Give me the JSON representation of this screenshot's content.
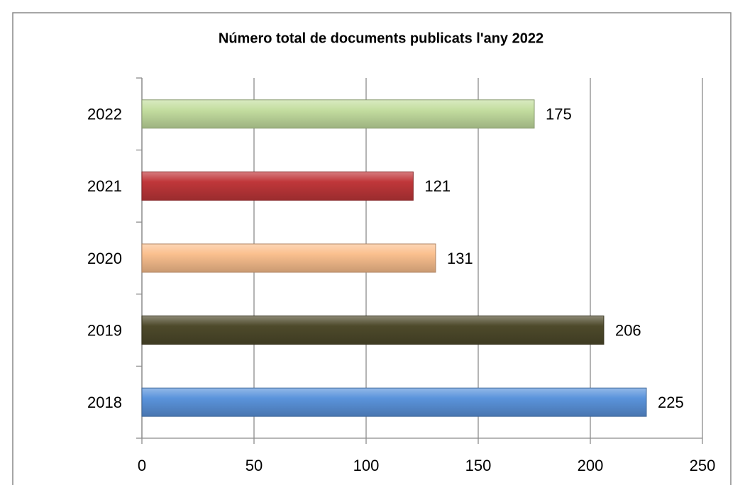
{
  "chart_data": {
    "type": "bar",
    "orientation": "horizontal",
    "title": "Número total de documents publicats l'any 2022",
    "categories": [
      "2018",
      "2019",
      "2020",
      "2021",
      "2022"
    ],
    "values": [
      225,
      206,
      131,
      121,
      175
    ],
    "colors": [
      "#5b94dc",
      "#4e4a2b",
      "#fbc08f",
      "#c0373a",
      "#c4dea0"
    ],
    "xlim": [
      0,
      250
    ],
    "xticks": [
      0,
      50,
      100,
      150,
      200,
      250
    ],
    "grid": true
  }
}
